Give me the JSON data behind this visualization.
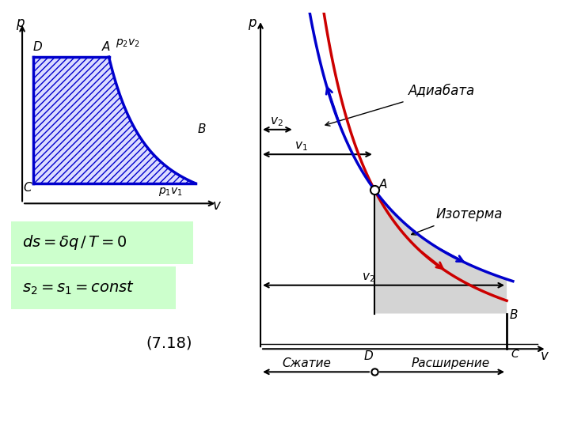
{
  "bg_color": "#ffffff",
  "left_panel": {
    "line_color": "#0000cc",
    "fill_color": "#bbbbff",
    "hatch_color": "#0000cc"
  },
  "right_panel": {
    "adiabat_color": "#cc0000",
    "isotherm_color": "#0000cc",
    "shaded_color": "#d0d0d0"
  },
  "eq_bg_color": "#ccffcc",
  "eq_number": "(7.18)",
  "label_adiabata": "Адиабата",
  "label_izoterma": "Изотерма",
  "label_v2_top": "$v_2$",
  "label_v1": "$v_1$",
  "label_v2_bottom": "$v_2$",
  "label_szhatiye": "Сжатие",
  "label_rasshireniye": "Расширение",
  "label_D": "D",
  "label_B": "B",
  "label_C": "C",
  "label_A": "A",
  "label_p": "p",
  "label_v": "v"
}
